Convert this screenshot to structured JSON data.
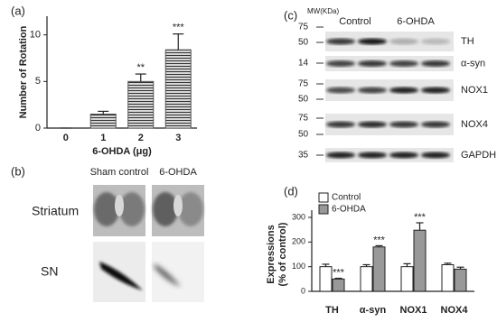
{
  "panel_labels": [
    "(a)",
    "(b)",
    "(c)",
    "(d)"
  ],
  "chart_data": [
    {
      "type": "bar",
      "x_label": "6-OHDA (μg)",
      "y_label": "Number of Rotation",
      "categories": [
        "0",
        "1",
        "2",
        "3"
      ],
      "values": [
        0,
        1.5,
        5.0,
        8.4
      ],
      "errors": [
        0,
        0.3,
        0.8,
        1.7
      ],
      "annotations": [
        null,
        null,
        "**",
        "***"
      ],
      "ylim": [
        0,
        12
      ],
      "yticks": [
        0,
        5,
        10
      ],
      "color": "#555555"
    },
    {
      "type": "grouped_bar",
      "y_label": [
        "Expressions",
        "(% of control)"
      ],
      "categories": [
        "TH",
        "α-syn",
        "NOX1",
        "NOX4"
      ],
      "series": [
        {
          "name": "Control",
          "color": "#ffffff",
          "values": [
            100,
            100,
            100,
            108
          ],
          "errors": [
            10,
            8,
            12,
            6
          ],
          "annotations": [
            null,
            null,
            null,
            null
          ]
        },
        {
          "name": "6-OHDA",
          "color": "#999999",
          "values": [
            50,
            180,
            248,
            90
          ],
          "errors": [
            3,
            5,
            30,
            8
          ],
          "annotations": [
            "***",
            "***",
            "***",
            null
          ]
        }
      ],
      "ylim": [
        0,
        300
      ],
      "yticks": [
        0,
        100,
        200,
        300
      ],
      "legend": "upper left"
    }
  ],
  "histology": {
    "columns": [
      "Sham control",
      "6-OHDA"
    ],
    "rows": [
      "Striatum",
      "SN"
    ]
  },
  "blot": {
    "unit_label": "MW(KDa)",
    "groups": [
      "Control",
      "6-OHDA"
    ],
    "rows": [
      {
        "protein": "TH",
        "mw": [
          75,
          50
        ]
      },
      {
        "protein": "α-syn",
        "mw": [
          14
        ]
      },
      {
        "protein": "NOX1",
        "mw": [
          75,
          50
        ]
      },
      {
        "protein": "NOX4",
        "mw": [
          75,
          50
        ]
      },
      {
        "protein": "GAPDH",
        "mw": [
          35
        ]
      }
    ]
  }
}
